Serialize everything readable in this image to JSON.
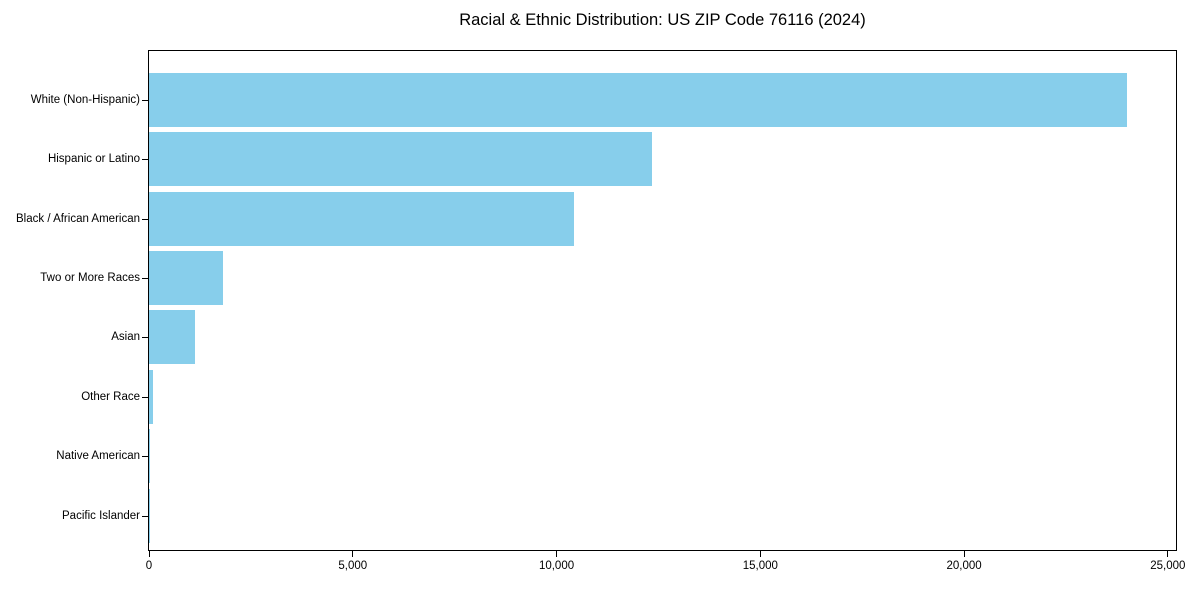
{
  "figure": {
    "background": "#ffffff",
    "frame_color": "#000000"
  },
  "chart_data": {
    "type": "bar",
    "orientation": "horizontal",
    "title": "Racial & Ethnic Distribution: US ZIP Code 76116 (2024)",
    "categories": [
      "White (Non-Hispanic)",
      "Hispanic or Latino",
      "Black / African American",
      "Two or More Races",
      "Asian",
      "Other Race",
      "Native American",
      "Pacific Islander"
    ],
    "values": [
      24000,
      12350,
      10420,
      1810,
      1130,
      100,
      35,
      10
    ],
    "xlabel": "",
    "ylabel": "",
    "xlim": [
      0,
      25200
    ],
    "xticks": [
      0,
      5000,
      10000,
      15000,
      20000,
      25000
    ],
    "xtick_labels": [
      "0",
      "5,000",
      "10,000",
      "15,000",
      "20,000",
      "25,000"
    ],
    "bar_color": "#87CEEB",
    "grid": false,
    "legend_position": "none"
  }
}
